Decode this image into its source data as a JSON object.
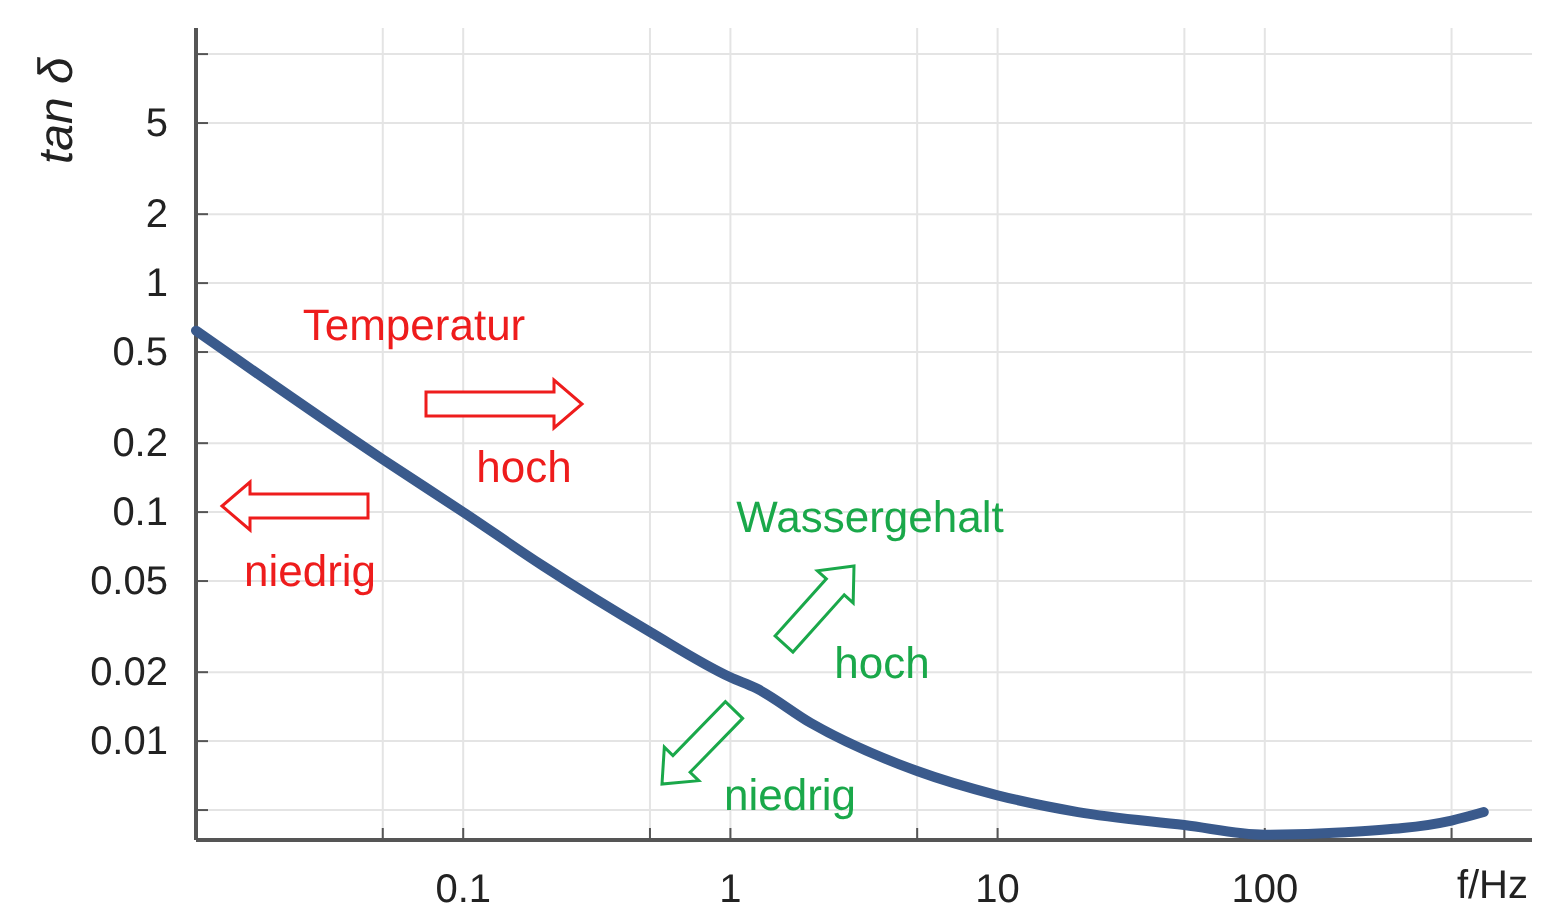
{
  "chart_data": {
    "type": "line",
    "xlabel": "f/Hz",
    "ylabel": "tan δ",
    "x": [
      0.01,
      0.05,
      0.1,
      0.2,
      0.5,
      1,
      1.25,
      2,
      5,
      10,
      20,
      50,
      100,
      200,
      500,
      660
    ],
    "series": [
      {
        "color": "#3a5a8c",
        "values": [
          0.62,
          0.17,
          0.1,
          0.058,
          0.03,
          0.019,
          0.017,
          0.012,
          0.0074,
          0.0058,
          0.0049,
          0.0043,
          0.0039,
          0.004,
          0.0045,
          0.0049
        ]
      }
    ],
    "xlim": [
      0.01,
      1000
    ],
    "ylim": [
      0.0037,
      13
    ],
    "log": "xy",
    "grid": true,
    "line_style": "solid",
    "marker": "none",
    "xticks": [
      {
        "value": 0.05,
        "label": null
      },
      0.1,
      {
        "value": 0.5,
        "label": null
      },
      1,
      {
        "value": 5,
        "label": null
      },
      10,
      {
        "value": 50,
        "label": null
      },
      100,
      {
        "value": 500,
        "label": null
      }
    ],
    "yticks": [
      {
        "value": 0.005,
        "label": null
      },
      0.01,
      0.02,
      0.05,
      0.1,
      0.2,
      0.5,
      1,
      2,
      5,
      {
        "value": 10,
        "label": null
      }
    ],
    "annotations": [
      "Temperatur",
      "hoch",
      "niedrig",
      "Wassergehalt",
      "hoch",
      "niedrig"
    ]
  }
}
